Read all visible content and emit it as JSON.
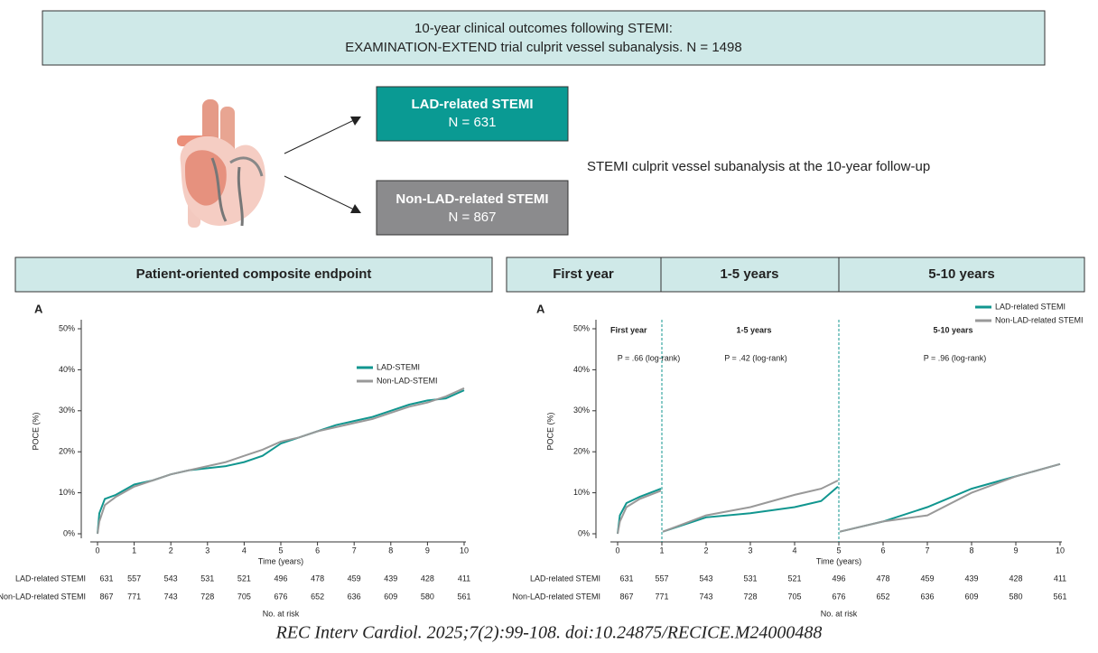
{
  "header": {
    "line1": "10-year clinical outcomes following STEMI:",
    "line2": "EXAMINATION-EXTEND trial culprit vessel subanalysis. N = 1498"
  },
  "groups": [
    {
      "name": "LAD-related STEMI",
      "n": "N = 631"
    },
    {
      "name": "Non-LAD-related STEMI",
      "n": "N = 867"
    }
  ],
  "description": "STEMI culprit vessel subanalysis at the 10-year follow-up",
  "sections": [
    "Patient-oriented composite endpoint",
    "First year",
    "1-5 years",
    "5-10 years"
  ],
  "chart_data": [
    {
      "type": "line",
      "panel": "A",
      "ylabel": "POCE (%)",
      "xlabel": "Time (years)",
      "xlim": [
        0,
        10
      ],
      "ylim": [
        0,
        50
      ],
      "xticks": [
        0,
        1,
        2,
        3,
        4,
        5,
        6,
        7,
        8,
        9,
        10
      ],
      "yticks": [
        {
          "value": 0,
          "label": "0%"
        },
        {
          "value": 10,
          "label": "10%"
        },
        {
          "value": 20,
          "label": "20%"
        },
        {
          "value": 30,
          "label": "30%"
        },
        {
          "value": 40,
          "label": "40%"
        },
        {
          "value": 50,
          "label": "50%"
        }
      ],
      "legend_position": "right",
      "x": [
        0,
        0.05,
        0.2,
        0.5,
        1,
        1.5,
        2,
        2.5,
        3,
        3.5,
        4,
        4.5,
        5,
        5.5,
        6,
        6.5,
        7,
        7.5,
        8,
        8.5,
        9,
        9.5,
        10
      ],
      "series": [
        {
          "name": "LAD-STEMI",
          "color": "#11968f",
          "values": [
            0,
            5,
            8.5,
            9.5,
            12,
            13,
            14.5,
            15.5,
            16,
            16.5,
            17.5,
            19,
            22,
            23.5,
            25,
            26.5,
            27.5,
            28.5,
            30,
            31.5,
            32.5,
            33,
            35
          ]
        },
        {
          "name": "Non-LAD-STEMI",
          "color": "#999999",
          "values": [
            0,
            3,
            7,
            9,
            11.5,
            13,
            14.5,
            15.5,
            16.5,
            17.5,
            19,
            20.5,
            22.5,
            23.5,
            25,
            26,
            27,
            28,
            29.5,
            31,
            32,
            33.5,
            35.5
          ]
        }
      ],
      "risk_table": {
        "title": "No. at risk",
        "rows": [
          {
            "label": "LAD-related STEMI",
            "values": [
              631,
              557,
              543,
              531,
              521,
              496,
              478,
              459,
              439,
              428,
              411
            ]
          },
          {
            "label": "Non-LAD-related STEMI",
            "values": [
              867,
              771,
              743,
              728,
              705,
              676,
              652,
              636,
              609,
              580,
              561
            ]
          }
        ]
      }
    },
    {
      "type": "line",
      "panel": "A",
      "ylabel": "POCE (%)",
      "xlabel": "Time (years)",
      "xlim": [
        0,
        10
      ],
      "ylim": [
        0,
        50
      ],
      "xticks": [
        0,
        1,
        2,
        3,
        4,
        5,
        6,
        7,
        8,
        9,
        10
      ],
      "yticks": [
        {
          "value": 0,
          "label": "0%"
        },
        {
          "value": 10,
          "label": "10%"
        },
        {
          "value": 20,
          "label": "20%"
        },
        {
          "value": 30,
          "label": "30%"
        },
        {
          "value": 40,
          "label": "40%"
        },
        {
          "value": 50,
          "label": "50%"
        }
      ],
      "legend_position": "upper right",
      "landmarks": [
        1,
        5
      ],
      "period_labels": [
        "First year",
        "1-5 years",
        "5-10 years"
      ],
      "p_values": [
        "P = .66 (log-rank)",
        "P = .42 (log-rank)",
        "P = .96 (log-rank)"
      ],
      "x": [
        0,
        0.05,
        0.2,
        0.5,
        0.98,
        1,
        1.02,
        2,
        3,
        4,
        4.6,
        4.98,
        5,
        5.02,
        6,
        7,
        8,
        9,
        10
      ],
      "series": [
        {
          "name": "LAD-related STEMI",
          "color": "#11968f",
          "values": [
            0,
            4.5,
            7.5,
            9,
            11,
            null,
            0.5,
            4,
            5,
            6.5,
            8,
            11.5,
            null,
            0.5,
            3,
            6.5,
            11,
            14,
            17
          ]
        },
        {
          "name": "Non-LAD-related STEMI",
          "color": "#999999",
          "values": [
            0,
            3,
            6.5,
            8.5,
            10.5,
            null,
            0.5,
            4.5,
            6.5,
            9.5,
            11,
            13,
            null,
            0.5,
            3,
            4.5,
            10,
            14,
            17
          ]
        }
      ],
      "risk_table": {
        "title": "No. at risk",
        "rows": [
          {
            "label": "LAD-related STEMI",
            "values": [
              631,
              557,
              543,
              531,
              521,
              496,
              478,
              459,
              439,
              428,
              411
            ]
          },
          {
            "label": "Non-LAD-related STEMI",
            "values": [
              867,
              771,
              743,
              728,
              705,
              676,
              652,
              636,
              609,
              580,
              561
            ]
          }
        ]
      }
    }
  ],
  "citation": "REC Interv Cardiol. 2025;7(2):99-108. doi:10.24875/RECICE.M24000488"
}
